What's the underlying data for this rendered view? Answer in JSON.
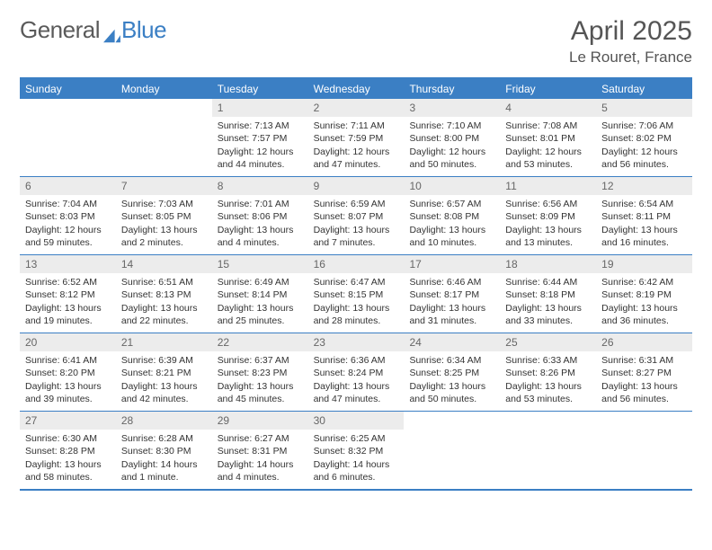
{
  "logo": {
    "text1": "General",
    "text2": "Blue",
    "color1": "#6a6a6a",
    "color2": "#3b7fc4"
  },
  "title": "April 2025",
  "location": "Le Rouret, France",
  "colors": {
    "headerBar": "#3b7fc4",
    "dayNumBg": "#ececec",
    "bodyText": "#333333",
    "titleText": "#555555"
  },
  "daysOfWeek": [
    "Sunday",
    "Monday",
    "Tuesday",
    "Wednesday",
    "Thursday",
    "Friday",
    "Saturday"
  ],
  "weeks": [
    [
      {
        "num": "",
        "lines": []
      },
      {
        "num": "",
        "lines": []
      },
      {
        "num": "1",
        "lines": [
          "Sunrise: 7:13 AM",
          "Sunset: 7:57 PM",
          "Daylight: 12 hours",
          "and 44 minutes."
        ]
      },
      {
        "num": "2",
        "lines": [
          "Sunrise: 7:11 AM",
          "Sunset: 7:59 PM",
          "Daylight: 12 hours",
          "and 47 minutes."
        ]
      },
      {
        "num": "3",
        "lines": [
          "Sunrise: 7:10 AM",
          "Sunset: 8:00 PM",
          "Daylight: 12 hours",
          "and 50 minutes."
        ]
      },
      {
        "num": "4",
        "lines": [
          "Sunrise: 7:08 AM",
          "Sunset: 8:01 PM",
          "Daylight: 12 hours",
          "and 53 minutes."
        ]
      },
      {
        "num": "5",
        "lines": [
          "Sunrise: 7:06 AM",
          "Sunset: 8:02 PM",
          "Daylight: 12 hours",
          "and 56 minutes."
        ]
      }
    ],
    [
      {
        "num": "6",
        "lines": [
          "Sunrise: 7:04 AM",
          "Sunset: 8:03 PM",
          "Daylight: 12 hours",
          "and 59 minutes."
        ]
      },
      {
        "num": "7",
        "lines": [
          "Sunrise: 7:03 AM",
          "Sunset: 8:05 PM",
          "Daylight: 13 hours",
          "and 2 minutes."
        ]
      },
      {
        "num": "8",
        "lines": [
          "Sunrise: 7:01 AM",
          "Sunset: 8:06 PM",
          "Daylight: 13 hours",
          "and 4 minutes."
        ]
      },
      {
        "num": "9",
        "lines": [
          "Sunrise: 6:59 AM",
          "Sunset: 8:07 PM",
          "Daylight: 13 hours",
          "and 7 minutes."
        ]
      },
      {
        "num": "10",
        "lines": [
          "Sunrise: 6:57 AM",
          "Sunset: 8:08 PM",
          "Daylight: 13 hours",
          "and 10 minutes."
        ]
      },
      {
        "num": "11",
        "lines": [
          "Sunrise: 6:56 AM",
          "Sunset: 8:09 PM",
          "Daylight: 13 hours",
          "and 13 minutes."
        ]
      },
      {
        "num": "12",
        "lines": [
          "Sunrise: 6:54 AM",
          "Sunset: 8:11 PM",
          "Daylight: 13 hours",
          "and 16 minutes."
        ]
      }
    ],
    [
      {
        "num": "13",
        "lines": [
          "Sunrise: 6:52 AM",
          "Sunset: 8:12 PM",
          "Daylight: 13 hours",
          "and 19 minutes."
        ]
      },
      {
        "num": "14",
        "lines": [
          "Sunrise: 6:51 AM",
          "Sunset: 8:13 PM",
          "Daylight: 13 hours",
          "and 22 minutes."
        ]
      },
      {
        "num": "15",
        "lines": [
          "Sunrise: 6:49 AM",
          "Sunset: 8:14 PM",
          "Daylight: 13 hours",
          "and 25 minutes."
        ]
      },
      {
        "num": "16",
        "lines": [
          "Sunrise: 6:47 AM",
          "Sunset: 8:15 PM",
          "Daylight: 13 hours",
          "and 28 minutes."
        ]
      },
      {
        "num": "17",
        "lines": [
          "Sunrise: 6:46 AM",
          "Sunset: 8:17 PM",
          "Daylight: 13 hours",
          "and 31 minutes."
        ]
      },
      {
        "num": "18",
        "lines": [
          "Sunrise: 6:44 AM",
          "Sunset: 8:18 PM",
          "Daylight: 13 hours",
          "and 33 minutes."
        ]
      },
      {
        "num": "19",
        "lines": [
          "Sunrise: 6:42 AM",
          "Sunset: 8:19 PM",
          "Daylight: 13 hours",
          "and 36 minutes."
        ]
      }
    ],
    [
      {
        "num": "20",
        "lines": [
          "Sunrise: 6:41 AM",
          "Sunset: 8:20 PM",
          "Daylight: 13 hours",
          "and 39 minutes."
        ]
      },
      {
        "num": "21",
        "lines": [
          "Sunrise: 6:39 AM",
          "Sunset: 8:21 PM",
          "Daylight: 13 hours",
          "and 42 minutes."
        ]
      },
      {
        "num": "22",
        "lines": [
          "Sunrise: 6:37 AM",
          "Sunset: 8:23 PM",
          "Daylight: 13 hours",
          "and 45 minutes."
        ]
      },
      {
        "num": "23",
        "lines": [
          "Sunrise: 6:36 AM",
          "Sunset: 8:24 PM",
          "Daylight: 13 hours",
          "and 47 minutes."
        ]
      },
      {
        "num": "24",
        "lines": [
          "Sunrise: 6:34 AM",
          "Sunset: 8:25 PM",
          "Daylight: 13 hours",
          "and 50 minutes."
        ]
      },
      {
        "num": "25",
        "lines": [
          "Sunrise: 6:33 AM",
          "Sunset: 8:26 PM",
          "Daylight: 13 hours",
          "and 53 minutes."
        ]
      },
      {
        "num": "26",
        "lines": [
          "Sunrise: 6:31 AM",
          "Sunset: 8:27 PM",
          "Daylight: 13 hours",
          "and 56 minutes."
        ]
      }
    ],
    [
      {
        "num": "27",
        "lines": [
          "Sunrise: 6:30 AM",
          "Sunset: 8:28 PM",
          "Daylight: 13 hours",
          "and 58 minutes."
        ]
      },
      {
        "num": "28",
        "lines": [
          "Sunrise: 6:28 AM",
          "Sunset: 8:30 PM",
          "Daylight: 14 hours",
          "and 1 minute."
        ]
      },
      {
        "num": "29",
        "lines": [
          "Sunrise: 6:27 AM",
          "Sunset: 8:31 PM",
          "Daylight: 14 hours",
          "and 4 minutes."
        ]
      },
      {
        "num": "30",
        "lines": [
          "Sunrise: 6:25 AM",
          "Sunset: 8:32 PM",
          "Daylight: 14 hours",
          "and 6 minutes."
        ]
      },
      {
        "num": "",
        "lines": []
      },
      {
        "num": "",
        "lines": []
      },
      {
        "num": "",
        "lines": []
      }
    ]
  ]
}
